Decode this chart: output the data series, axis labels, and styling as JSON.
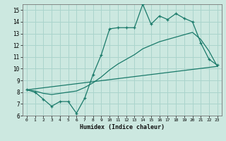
{
  "xlabel": "Humidex (Indice chaleur)",
  "bg_color": "#cce8e0",
  "grid_color": "#aad4cc",
  "line_color": "#1a7a6a",
  "xlim": [
    -0.5,
    23.5
  ],
  "ylim": [
    6,
    15.5
  ],
  "xticks": [
    0,
    1,
    2,
    3,
    4,
    5,
    6,
    7,
    8,
    9,
    10,
    11,
    12,
    13,
    14,
    15,
    16,
    17,
    18,
    19,
    20,
    21,
    22,
    23
  ],
  "yticks": [
    6,
    7,
    8,
    9,
    10,
    11,
    12,
    13,
    14,
    15
  ],
  "main_x": [
    0,
    1,
    2,
    3,
    4,
    5,
    6,
    7,
    8,
    9,
    10,
    11,
    12,
    13,
    14,
    15,
    16,
    17,
    18,
    19,
    20,
    21,
    22,
    23
  ],
  "main_y": [
    8.2,
    8.0,
    7.4,
    6.8,
    7.2,
    7.2,
    6.2,
    7.5,
    9.5,
    11.2,
    13.4,
    13.5,
    13.5,
    13.5,
    15.5,
    13.8,
    14.5,
    14.2,
    14.7,
    14.3,
    14.0,
    12.2,
    10.8,
    10.3
  ],
  "trend1_x": [
    0,
    23
  ],
  "trend1_y": [
    8.2,
    10.2
  ],
  "trend2_x": [
    0,
    1,
    2,
    3,
    4,
    5,
    6,
    7,
    8,
    9,
    10,
    11,
    12,
    13,
    14,
    15,
    16,
    17,
    18,
    19,
    20,
    21,
    22,
    23
  ],
  "trend2_y": [
    8.2,
    8.1,
    7.9,
    7.8,
    7.9,
    8.0,
    8.1,
    8.4,
    8.8,
    9.3,
    9.9,
    10.4,
    10.8,
    11.2,
    11.7,
    12.0,
    12.3,
    12.5,
    12.7,
    12.9,
    13.1,
    12.5,
    11.5,
    10.2
  ]
}
